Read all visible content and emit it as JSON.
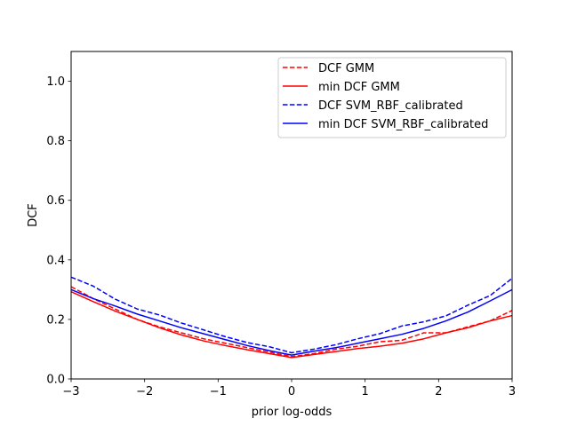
{
  "chart_data": {
    "type": "line",
    "title": "",
    "xlabel": "prior log-odds",
    "ylabel": "DCF",
    "xlim": [
      -3,
      3
    ],
    "ylim": [
      0,
      1.1
    ],
    "x_ticks": [
      -3,
      -2,
      -1,
      0,
      1,
      2,
      3
    ],
    "x_tick_labels": [
      "−3",
      "−2",
      "−1",
      "0",
      "1",
      "2",
      "3"
    ],
    "y_ticks": [
      0.0,
      0.2,
      0.4,
      0.6,
      0.8,
      1.0
    ],
    "y_tick_labels": [
      "0.0",
      "0.2",
      "0.4",
      "0.6",
      "0.8",
      "1.0"
    ],
    "grid": false,
    "legend_position": "top-right",
    "series": [
      {
        "name": "DCF GMM",
        "color": "#ff0000",
        "style": "dashed",
        "x": [
          -3,
          -2.7,
          -2.4,
          -2.1,
          -1.8,
          -1.5,
          -1.2,
          -0.9,
          -0.6,
          -0.3,
          0,
          0.3,
          0.6,
          0.9,
          1.2,
          1.5,
          1.8,
          2.1,
          2.4,
          2.7,
          3
        ],
        "y": [
          0.31,
          0.27,
          0.235,
          0.2,
          0.175,
          0.155,
          0.135,
          0.12,
          0.105,
          0.09,
          0.075,
          0.085,
          0.1,
          0.11,
          0.125,
          0.13,
          0.155,
          0.155,
          0.175,
          0.195,
          0.23
        ]
      },
      {
        "name": "min DCF GMM",
        "color": "#ff0000",
        "style": "solid",
        "x": [
          -3,
          -2.7,
          -2.4,
          -2.1,
          -1.8,
          -1.5,
          -1.2,
          -0.9,
          -0.6,
          -0.3,
          0,
          0.3,
          0.6,
          0.9,
          1.2,
          1.5,
          1.8,
          2.1,
          2.4,
          2.7,
          3
        ],
        "y": [
          0.293,
          0.26,
          0.228,
          0.2,
          0.172,
          0.148,
          0.128,
          0.112,
          0.098,
          0.085,
          0.072,
          0.082,
          0.092,
          0.102,
          0.11,
          0.12,
          0.135,
          0.155,
          0.172,
          0.195,
          0.213
        ]
      },
      {
        "name": "DCF SVM_RBF_calibrated",
        "color": "#0000ff",
        "style": "dashed",
        "x": [
          -3,
          -2.7,
          -2.4,
          -2.1,
          -1.8,
          -1.5,
          -1.2,
          -0.9,
          -0.6,
          -0.3,
          0,
          0.3,
          0.6,
          0.9,
          1.2,
          1.5,
          1.8,
          2.1,
          2.4,
          2.7,
          3
        ],
        "y": [
          0.342,
          0.312,
          0.268,
          0.235,
          0.215,
          0.188,
          0.165,
          0.142,
          0.122,
          0.108,
          0.088,
          0.1,
          0.115,
          0.135,
          0.152,
          0.178,
          0.192,
          0.212,
          0.248,
          0.28,
          0.338
        ]
      },
      {
        "name": "min DCF SVM_RBF_calibrated",
        "color": "#0000ff",
        "style": "solid",
        "x": [
          -3,
          -2.7,
          -2.4,
          -2.1,
          -1.8,
          -1.5,
          -1.2,
          -0.9,
          -0.6,
          -0.3,
          0,
          0.3,
          0.6,
          0.9,
          1.2,
          1.5,
          1.8,
          2.1,
          2.4,
          2.7,
          3
        ],
        "y": [
          0.3,
          0.27,
          0.245,
          0.218,
          0.195,
          0.172,
          0.152,
          0.132,
          0.112,
          0.095,
          0.08,
          0.093,
          0.105,
          0.12,
          0.135,
          0.15,
          0.17,
          0.195,
          0.225,
          0.262,
          0.3
        ]
      }
    ]
  }
}
